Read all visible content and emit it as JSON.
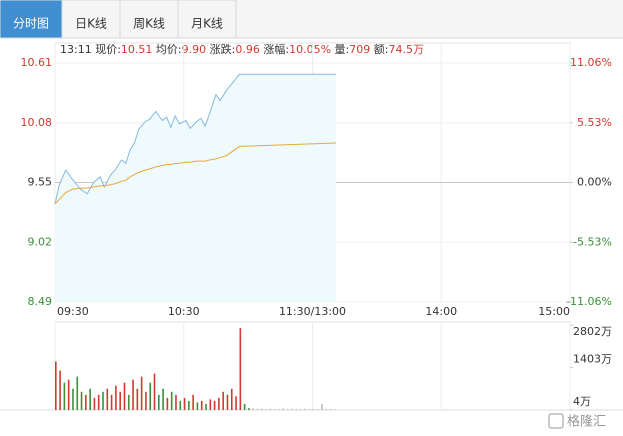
{
  "tabs": [
    "分时图",
    "日K线",
    "周K线",
    "月K线"
  ],
  "info": {
    "time": "13:11",
    "items": [
      {
        "label": "现价:",
        "value": "10.51"
      },
      {
        "label": "均价:",
        "value": "9.90"
      },
      {
        "label": "涨跌:",
        "value": "0.96"
      },
      {
        "label": "涨幅:",
        "value": "10.05%"
      },
      {
        "label": "量:",
        "value": "709"
      },
      {
        "label": "额:",
        "value": "74.5万"
      }
    ]
  },
  "watermark": "格隆汇",
  "chart_data": {
    "type": "line",
    "x": [
      0,
      2,
      5,
      8,
      12,
      15,
      18,
      21,
      23,
      26,
      28,
      31,
      33,
      35,
      37,
      39,
      42,
      44,
      47,
      50,
      52,
      54,
      56,
      58,
      61,
      63,
      66,
      68,
      70,
      72,
      75,
      77,
      80,
      83,
      86,
      131
    ],
    "series": [
      {
        "color": "#86b9de",
        "values": [
          9.36,
          9.53,
          9.66,
          9.58,
          9.49,
          9.45,
          9.55,
          9.6,
          9.51,
          9.62,
          9.66,
          9.75,
          9.72,
          9.84,
          9.9,
          10.02,
          10.09,
          10.11,
          10.18,
          10.1,
          10.13,
          10.04,
          10.14,
          10.07,
          10.1,
          10.03,
          10.09,
          10.12,
          10.05,
          10.16,
          10.33,
          10.28,
          10.37,
          10.44,
          10.51,
          10.51
        ]
      },
      {
        "color": "#e8a838",
        "values": [
          9.36,
          9.4,
          9.46,
          9.49,
          9.5,
          9.5,
          9.51,
          9.52,
          9.52,
          9.53,
          9.54,
          9.56,
          9.57,
          9.6,
          9.62,
          9.64,
          9.66,
          9.67,
          9.69,
          9.7,
          9.71,
          9.71,
          9.72,
          9.72,
          9.73,
          9.73,
          9.74,
          9.74,
          9.74,
          9.75,
          9.76,
          9.77,
          9.79,
          9.83,
          9.87,
          9.9
        ]
      }
    ],
    "fill": "#eefafc",
    "xlim": [
      0,
      240
    ],
    "xticks": [
      {
        "value": 0,
        "label": "09:30"
      },
      {
        "value": 60,
        "label": "10:30"
      },
      {
        "value": 120,
        "label": "11:30/13:00"
      },
      {
        "value": 180,
        "label": "14:00"
      },
      {
        "value": 240,
        "label": "15:00"
      }
    ],
    "ylim": [
      8.49,
      10.61
    ],
    "yticks": [
      8.49,
      9.02,
      9.55,
      10.08,
      10.61
    ],
    "y2lim": [
      -11.06,
      11.06
    ],
    "y2ticks": [
      {
        "value": -11.06,
        "label": "-11.06%"
      },
      {
        "value": -5.53,
        "label": "-5.53%"
      },
      {
        "value": 0,
        "label": "0.00%"
      },
      {
        "value": 5.53,
        "label": "5.53%"
      },
      {
        "value": 11.06,
        "label": "11.06%"
      }
    ],
    "up_color": "#d03a2e",
    "down_color": "#3a8f3a",
    "flat_color": "#333333",
    "volume": {
      "x": [
        0,
        2,
        4,
        6,
        8,
        10,
        12,
        14,
        16,
        18,
        20,
        22,
        24,
        26,
        28,
        30,
        32,
        34,
        36,
        38,
        40,
        42,
        44,
        46,
        48,
        50,
        52,
        54,
        56,
        58,
        60,
        62,
        64,
        66,
        68,
        70,
        72,
        74,
        76,
        78,
        80,
        82,
        84,
        86,
        88,
        90,
        92,
        94,
        96,
        98,
        100,
        102,
        104,
        106,
        108,
        110,
        112,
        114,
        116,
        118,
        120,
        122,
        124,
        126,
        128,
        130
      ],
      "values": [
        1600,
        1300,
        900,
        1000,
        700,
        1100,
        600,
        500,
        700,
        400,
        500,
        600,
        700,
        500,
        800,
        600,
        900,
        500,
        1000,
        700,
        1100,
        600,
        900,
        1200,
        500,
        700,
        400,
        600,
        500,
        300,
        400,
        300,
        500,
        250,
        300,
        200,
        350,
        300,
        400,
        600,
        500,
        700,
        450,
        2700,
        200,
        60,
        50,
        40,
        40,
        30,
        40,
        30,
        30,
        50,
        30,
        40,
        30,
        30,
        40,
        30,
        30,
        30,
        200,
        30,
        30,
        30
      ],
      "colors": [
        "#d03a2e",
        "#d03a2e",
        "#3a8f3a",
        "#d03a2e",
        "#3a8f3a",
        "#3a8f3a",
        "#3a8f3a",
        "#d03a2e",
        "#3a8f3a",
        "#d03a2e",
        "#d03a2e",
        "#3a8f3a",
        "#d03a2e",
        "#d03a2e",
        "#d03a2e",
        "#d03a2e",
        "#d03a2e",
        "#3a8f3a",
        "#d03a2e",
        "#d03a2e",
        "#d03a2e",
        "#d03a2e",
        "#3a8f3a",
        "#d03a2e",
        "#3a8f3a",
        "#3a8f3a",
        "#d03a2e",
        "#3a8f3a",
        "#d03a2e",
        "#3a8f3a",
        "#d03a2e",
        "#3a8f3a",
        "#d03a2e",
        "#3a8f3a",
        "#d03a2e",
        "#3a8f3a",
        "#d03a2e",
        "#d03a2e",
        "#d03a2e",
        "#d03a2e",
        "#d03a2e",
        "#d03a2e",
        "#d03a2e",
        "#d03a2e",
        "#3a8f3a",
        "#3a8f3a",
        "#bbbbbb",
        "#bbbbbb",
        "#bbbbbb",
        "#bbbbbb",
        "#bbbbbb",
        "#bbbbbb",
        "#bbbbbb",
        "#bbbbbb",
        "#bbbbbb",
        "#bbbbbb",
        "#bbbbbb",
        "#bbbbbb",
        "#bbbbbb",
        "#bbbbbb",
        "#bbbbbb",
        "#bbbbbb",
        "#bbbbbb",
        "#bbbbbb",
        "#bbbbbb",
        "#bbbbbb"
      ],
      "ylim": [
        0,
        2802
      ],
      "yticks": [
        {
          "value": 4,
          "label": "4万"
        },
        {
          "value": 1403,
          "label": "1403万"
        },
        {
          "value": 2802,
          "label": "2802万"
        }
      ]
    }
  }
}
